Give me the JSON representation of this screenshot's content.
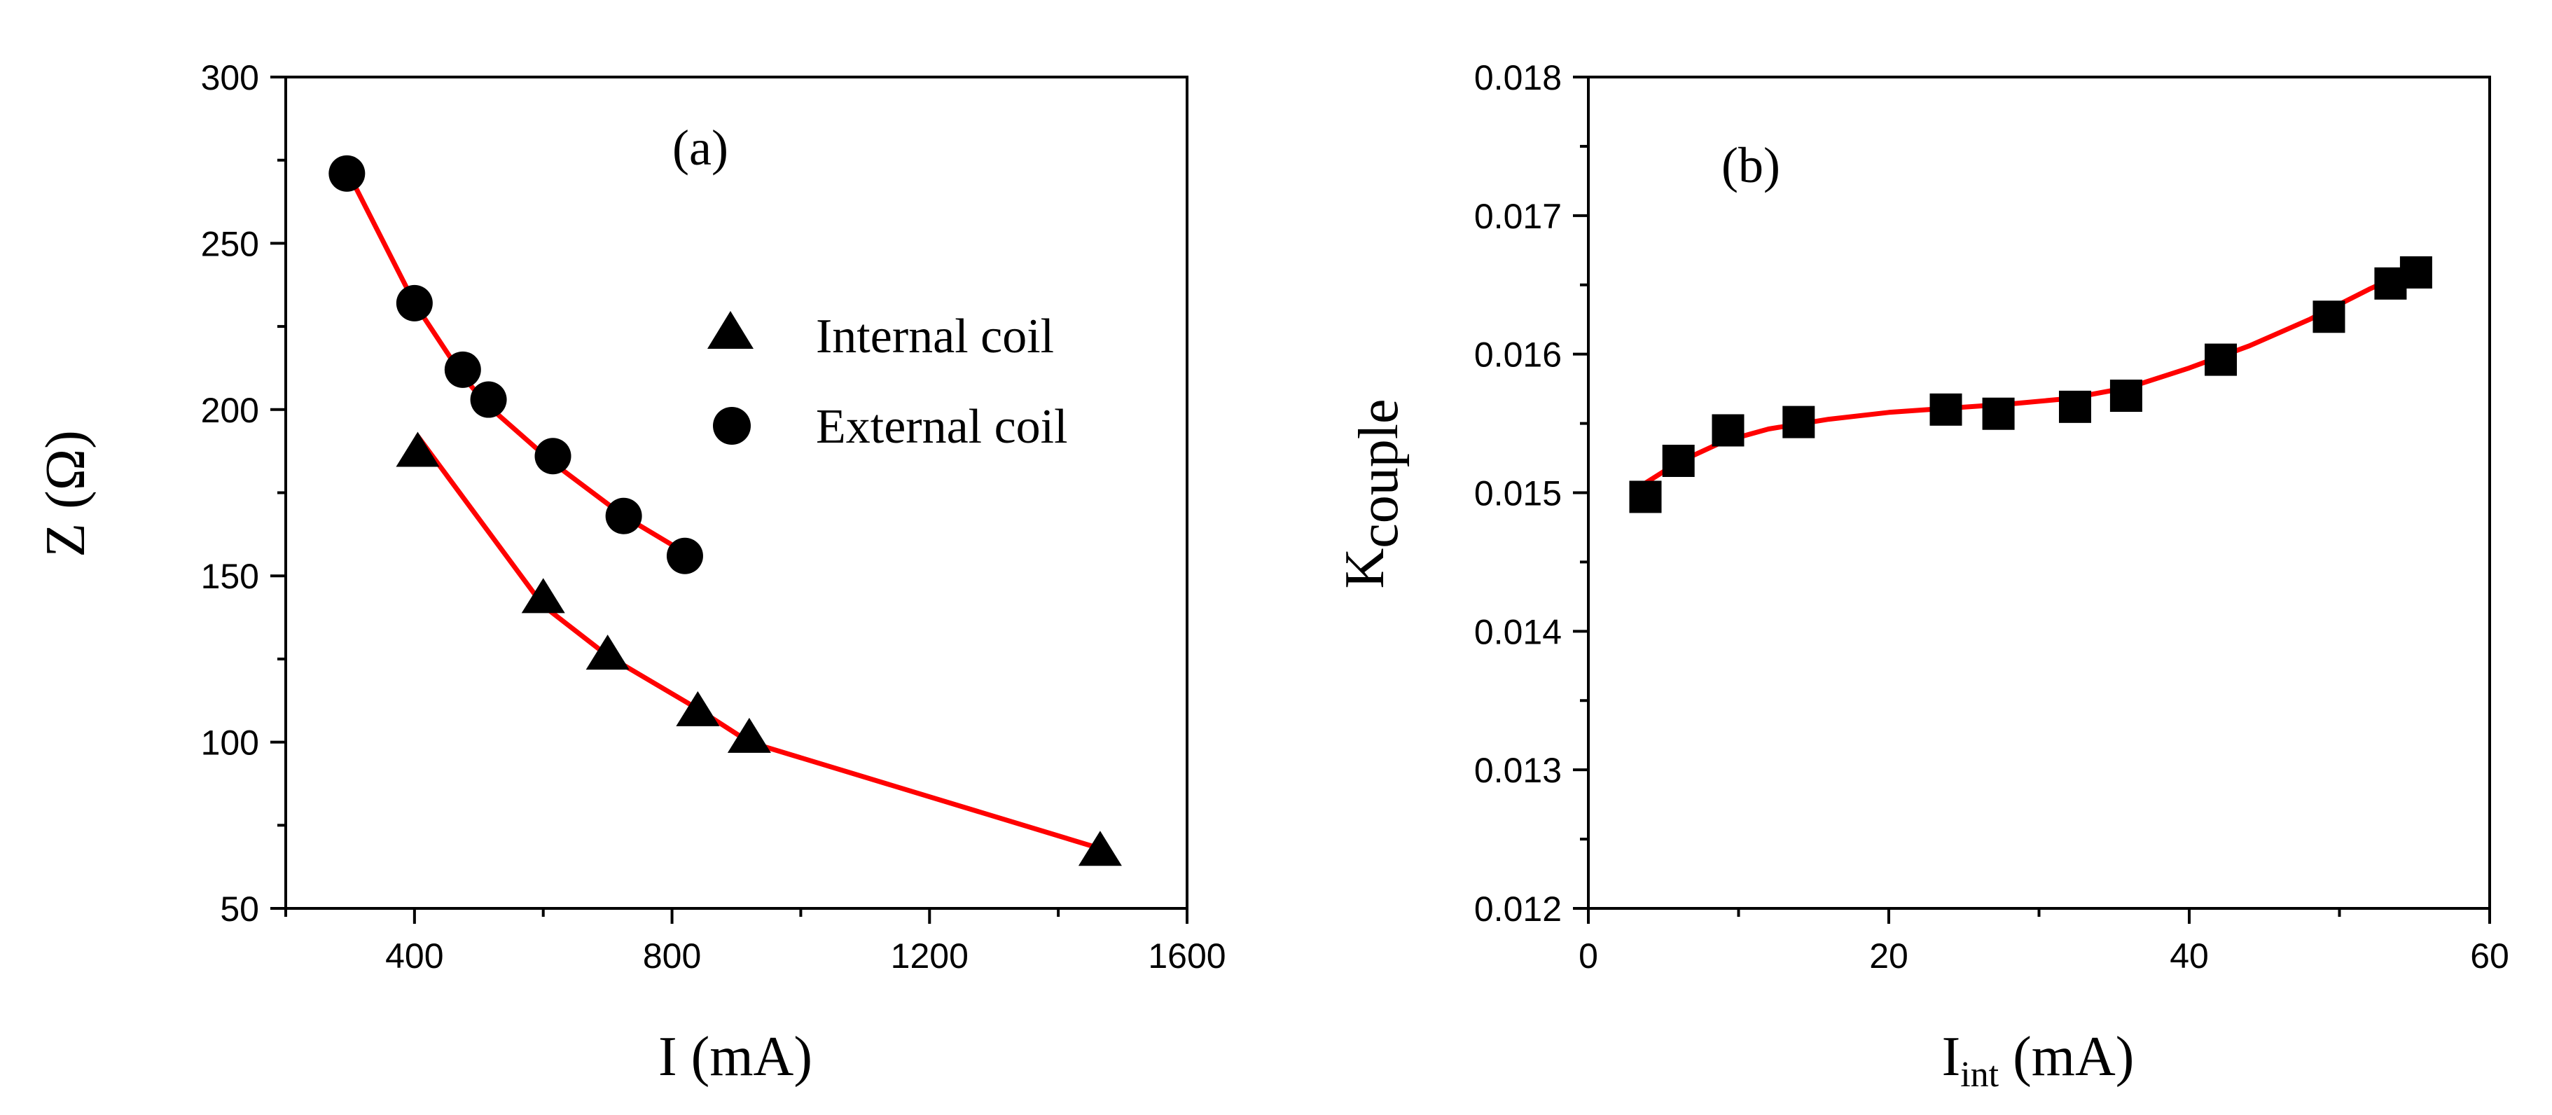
{
  "chart_data": [
    {
      "type": "scatter",
      "panel_label": "(a)",
      "xlabel": "I (mA)",
      "ylabel": "Z (Ω)",
      "xlim": [
        200,
        1600
      ],
      "ylim": [
        50,
        300
      ],
      "xticks": [
        400,
        800,
        1200,
        1600
      ],
      "yticks": [
        50,
        100,
        150,
        200,
        250,
        300
      ],
      "xtick_labels": [
        "400",
        "800",
        "1200",
        "1600"
      ],
      "ytick_labels": [
        "50",
        "100",
        "150",
        "200",
        "250",
        "300"
      ],
      "legend_position": "center-right",
      "series": [
        {
          "name": "Internal coil",
          "marker": "triangle",
          "color": "#000000",
          "x": [
            405,
            600,
            700,
            840,
            920,
            1465
          ],
          "y": [
            187,
            143,
            126,
            109,
            101,
            67
          ],
          "fit_x": [
            405,
            600,
            700,
            840,
            920,
            1465
          ],
          "fit_y": [
            192,
            141,
            126,
            110,
            100,
            68
          ]
        },
        {
          "name": "External coil",
          "marker": "circle",
          "color": "#000000",
          "x": [
            295,
            400,
            475,
            515,
            615,
            725,
            820
          ],
          "y": [
            271,
            232,
            212,
            203,
            186,
            168,
            156
          ],
          "fit_x": [
            295,
            400,
            475,
            515,
            615,
            725,
            820
          ],
          "fit_y": [
            272,
            232,
            210,
            201,
            184,
            168,
            157
          ]
        }
      ],
      "fit_color": "#ff0000"
    },
    {
      "type": "scatter",
      "panel_label": "(b)",
      "xlabel_main": "I",
      "xlabel_sub": "int",
      "xlabel_unit": " (mA)",
      "ylabel_main": "K",
      "ylabel_sub": "couple",
      "xlim": [
        0,
        60
      ],
      "ylim": [
        0.012,
        0.018
      ],
      "xticks": [
        0,
        20,
        40,
        60
      ],
      "yticks": [
        0.012,
        0.013,
        0.014,
        0.015,
        0.016,
        0.017,
        0.018
      ],
      "xtick_labels": [
        "0",
        "20",
        "40",
        "60"
      ],
      "ytick_labels": [
        "0.012",
        "0.013",
        "0.014",
        "0.015",
        "0.016",
        "0.017",
        "0.018"
      ],
      "series": [
        {
          "name": "K_couple",
          "marker": "square",
          "color": "#000000",
          "x": [
            3.8,
            6.0,
            9.3,
            14.0,
            23.8,
            27.3,
            32.4,
            35.8,
            42.1,
            49.3,
            53.4,
            55.1
          ],
          "y": [
            0.01497,
            0.01523,
            0.01545,
            0.01551,
            0.0156,
            0.01557,
            0.01562,
            0.0157,
            0.01596,
            0.01627,
            0.01651,
            0.01659
          ]
        }
      ],
      "fit_color": "#ff0000",
      "fit_x": [
        3.8,
        6,
        9,
        12,
        16,
        20,
        24,
        28,
        32,
        36,
        40,
        44,
        48,
        52,
        55.1
      ],
      "fit_y": [
        0.01507,
        0.01522,
        0.01537,
        0.01546,
        0.01553,
        0.01558,
        0.01561,
        0.01564,
        0.01568,
        0.01576,
        0.0159,
        0.01606,
        0.01625,
        0.01647,
        0.01662
      ]
    }
  ]
}
